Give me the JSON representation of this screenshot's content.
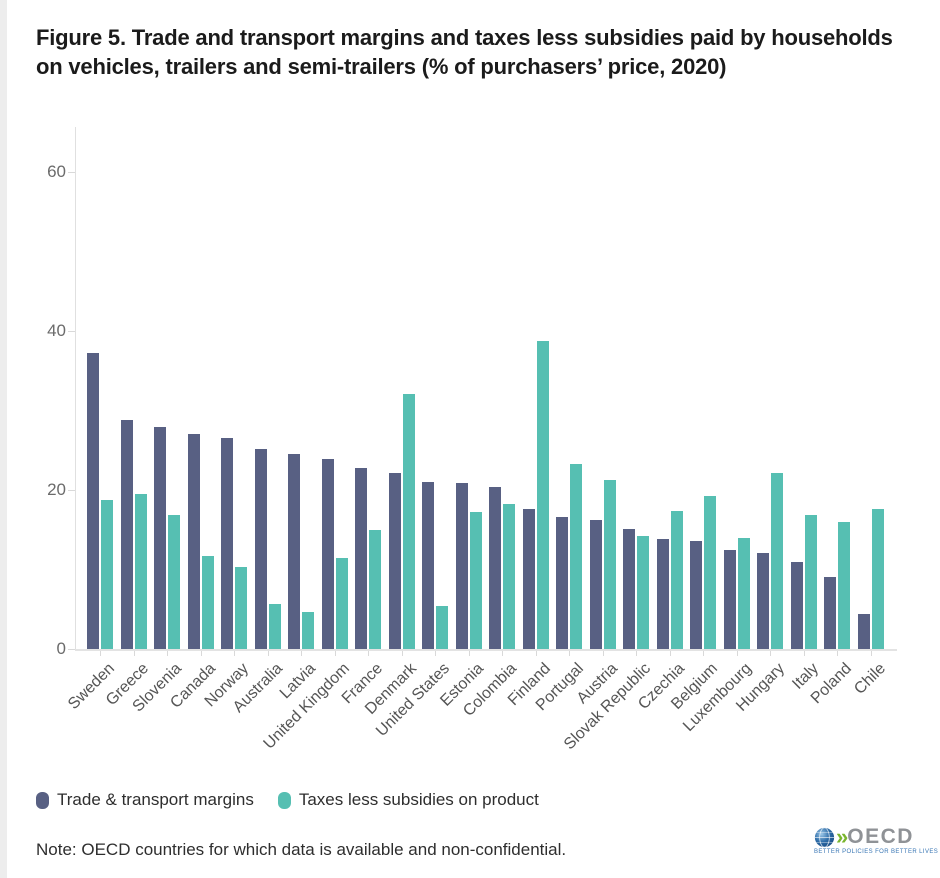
{
  "title": "Figure 5. Trade and transport margins and taxes less subsidies paid by households on vehicles, trailers and semi-trailers (% of purchasers’ price, 2020)",
  "note": "Note: OECD countries for which data is available and non-confidential.",
  "logo": {
    "text": "OECD",
    "tagline": "BETTER POLICIES FOR BETTER LIVES",
    "chevrons": "»",
    "globe_color": "#2d6ca8",
    "chevron_color": "#7ab52e",
    "word_color": "#8f9296",
    "tagline_color": "#3a77b5"
  },
  "colors": {
    "margins_series": "#586083",
    "taxes_series": "#56bfb2",
    "axis_line": "#e0e0e0",
    "tick_label": "#6b6b6b",
    "category_label": "#555555",
    "title_text": "#1b1b1b"
  },
  "chart_data": {
    "type": "bar",
    "title": "Figure 5. Trade and transport margins and taxes less subsidies paid by households on vehicles, trailers and semi-trailers (% of purchasers’ price, 2020)",
    "xlabel": "",
    "ylabel": "",
    "yticks": [
      0,
      20,
      40,
      60
    ],
    "ylim": [
      0,
      65
    ],
    "grid": false,
    "legend_position": "bottom",
    "categories": [
      "Sweden",
      "Greece",
      "Slovenia",
      "Canada",
      "Norway",
      "Australia",
      "Latvia",
      "United Kingdom",
      "France",
      "Denmark",
      "United States",
      "Estonia",
      "Colombia",
      "Finland",
      "Portugal",
      "Austria",
      "Slovak Republic",
      "Czechia",
      "Belgium",
      "Luxembourg",
      "Hungary",
      "Italy",
      "Poland",
      "Chile"
    ],
    "series": [
      {
        "name": "Trade & transport margins",
        "color": "#586083",
        "values": [
          37.2,
          28.8,
          27.9,
          27.1,
          26.6,
          25.2,
          24.5,
          23.9,
          22.8,
          22.2,
          21.0,
          20.9,
          20.4,
          17.6,
          16.6,
          16.2,
          15.1,
          13.8,
          13.6,
          12.5,
          12.1,
          10.9,
          9.1,
          4.4
        ]
      },
      {
        "name": "Taxes less subsidies on product",
        "color": "#56bfb2",
        "values": [
          18.7,
          19.5,
          16.9,
          11.7,
          10.3,
          5.7,
          4.6,
          11.5,
          15.0,
          32.1,
          5.4,
          17.2,
          18.3,
          38.8,
          23.3,
          21.3,
          14.2,
          17.4,
          19.2,
          13.9,
          22.1,
          16.9,
          16.0,
          17.6
        ]
      }
    ]
  }
}
